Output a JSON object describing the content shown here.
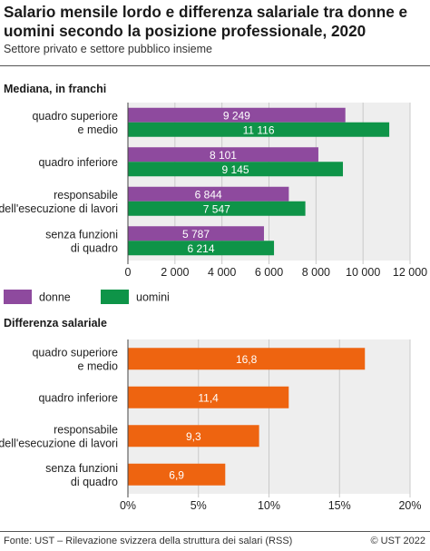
{
  "title": "Salario mensile lordo e differenza salariale tra donne e uomini secondo la posizione professionale, 2020",
  "subtitle": "Settore privato e settore pubblico insieme",
  "footer": {
    "source": "Fonte: UST – Rilevazione svizzera della struttura dei salari (RSS)",
    "copyright": "© UST 2022"
  },
  "colors": {
    "donne": "#8e4a9e",
    "uomini": "#0e9448",
    "differenza": "#ee6410",
    "grid": "#c9c9c9",
    "panel_bg": "#eeeeee"
  },
  "chart_data": [
    {
      "type": "bar",
      "orientation": "horizontal",
      "title": "Mediana, in franchi",
      "categories": [
        [
          "quadro superiore",
          "e medio"
        ],
        [
          "quadro inferiore"
        ],
        [
          "responsabile",
          "dell'esecuzione di lavori"
        ],
        [
          "senza funzioni",
          "di quadro"
        ]
      ],
      "series": [
        {
          "name": "donne",
          "values": [
            9249,
            8101,
            6844,
            5787
          ],
          "labels": [
            "9 249",
            "8 101",
            "6 844",
            "5 787"
          ]
        },
        {
          "name": "uomini",
          "values": [
            11116,
            9145,
            7547,
            6214
          ],
          "labels": [
            "11 116",
            "9 145",
            "7 547",
            "6 214"
          ]
        }
      ],
      "xlim": [
        0,
        12000
      ],
      "xticks": [
        0,
        2000,
        4000,
        6000,
        8000,
        10000,
        12000
      ],
      "xtick_labels": [
        "0",
        "2 000",
        "4 000",
        "6 000",
        "8 000",
        "10 000",
        "12 000"
      ],
      "legend": [
        "donne",
        "uomini"
      ],
      "legend_position": "bottom-left",
      "grid": true
    },
    {
      "type": "bar",
      "orientation": "horizontal",
      "title": "Differenza salariale",
      "categories": [
        [
          "quadro superiore",
          "e medio"
        ],
        [
          "quadro inferiore"
        ],
        [
          "responsabile",
          "dell'esecuzione di lavori"
        ],
        [
          "senza funzioni",
          "di quadro"
        ]
      ],
      "series": [
        {
          "name": "",
          "values": [
            16.8,
            11.4,
            9.3,
            6.9
          ],
          "labels": [
            "16,8",
            "11,4",
            "9,3",
            "6,9"
          ]
        }
      ],
      "xlim": [
        0,
        20
      ],
      "xticks": [
        0,
        5,
        10,
        15,
        20
      ],
      "xtick_labels": [
        "0%",
        "5%",
        "10%",
        "15%",
        "20%"
      ],
      "grid": true
    }
  ]
}
